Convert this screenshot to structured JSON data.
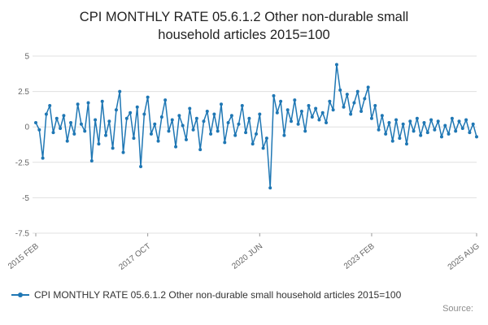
{
  "title": "CPI MONTHLY RATE 05.6.1.2 Other non-durable small household articles 2015=100",
  "legend": {
    "label": "CPI MONTHLY RATE 05.6.1.2 Other non-durable small household articles 2015=100"
  },
  "source_label": "Source:",
  "colors": {
    "accent": "#1f77b4",
    "grid": "#e0e0e0",
    "axis_text": "#666666"
  },
  "chart_data": {
    "type": "line",
    "title": "CPI MONTHLY RATE 05.6.1.2 Other non-durable small household articles 2015=100",
    "xlabel": "",
    "ylabel": "",
    "ylim": [
      -7.5,
      5
    ],
    "y_ticks": [
      5,
      2.5,
      0,
      -2.5,
      -5,
      -7.5
    ],
    "grid": "horizontal",
    "legend_position": "bottom-left",
    "line_color": "#1f77b4",
    "x_unit": "month",
    "x_start": "2015 FEB",
    "x_end": "2025 AUG",
    "x_ticks": [
      {
        "index": 0,
        "label": "2015 FEB"
      },
      {
        "index": 32,
        "label": "2017 OCT"
      },
      {
        "index": 64,
        "label": "2020 JUN"
      },
      {
        "index": 96,
        "label": "2023 FEB"
      },
      {
        "index": 126,
        "label": "2025 AUG"
      }
    ],
    "values": [
      0.3,
      -0.2,
      -2.2,
      0.9,
      1.5,
      -0.4,
      0.6,
      -0.1,
      0.8,
      -1.0,
      0.3,
      -0.5,
      1.6,
      0.2,
      -0.3,
      1.7,
      -2.4,
      0.5,
      -1.2,
      1.8,
      -0.6,
      0.4,
      -1.5,
      1.2,
      2.5,
      -1.8,
      0.6,
      1.0,
      -0.8,
      1.4,
      -2.8,
      0.9,
      2.1,
      -0.5,
      0.2,
      -1.0,
      0.7,
      1.9,
      -0.3,
      0.5,
      -1.4,
      0.8,
      0.1,
      -0.9,
      1.3,
      -0.2,
      0.6,
      -1.6,
      0.4,
      1.1,
      -0.5,
      0.9,
      -0.3,
      1.6,
      -1.1,
      0.3,
      0.8,
      -0.6,
      0.2,
      1.5,
      -0.4,
      0.6,
      -1.2,
      -0.5,
      0.9,
      -1.5,
      -0.8,
      -4.3,
      2.2,
      1.0,
      1.8,
      -0.6,
      1.2,
      0.4,
      1.9,
      0.2,
      1.1,
      -0.3,
      1.5,
      0.7,
      1.3,
      0.5,
      1.0,
      0.3,
      1.8,
      1.2,
      4.4,
      2.6,
      1.4,
      2.3,
      0.9,
      1.7,
      2.5,
      1.1,
      2.0,
      2.8,
      0.6,
      1.5,
      -0.2,
      0.8,
      -0.5,
      0.3,
      -1.0,
      0.5,
      -0.8,
      0.2,
      -1.2,
      0.4,
      -0.3,
      0.6,
      -0.6,
      0.3,
      -0.4,
      0.5,
      -0.2,
      0.4,
      -0.7,
      0.1,
      -0.5,
      0.6,
      -0.3,
      0.4,
      -0.1,
      0.5,
      -0.4,
      0.2,
      -0.7
    ]
  }
}
